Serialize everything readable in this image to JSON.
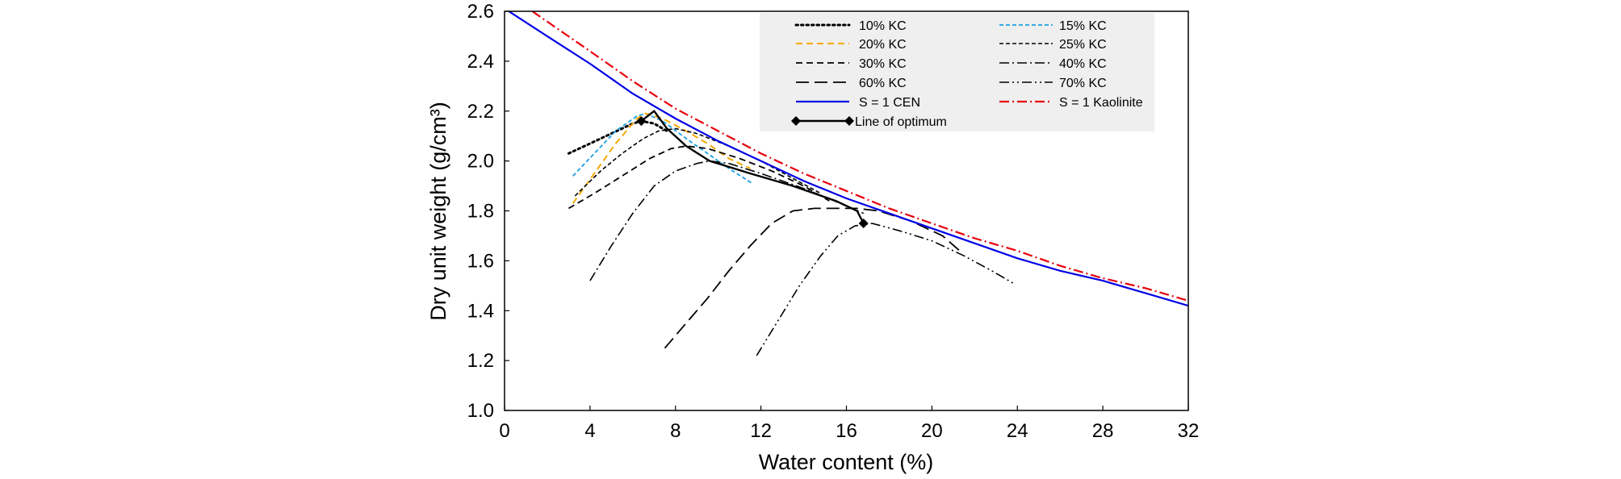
{
  "chart_data": {
    "type": "line",
    "xlabel": "Water content (%)",
    "ylabel": "Dry unit weight (g/cm³)",
    "xlim": [
      0,
      32
    ],
    "ylim": [
      1.0,
      2.6
    ],
    "x_ticks": [
      0,
      4,
      8,
      12,
      16,
      20,
      24,
      28,
      32
    ],
    "y_ticks": [
      1.0,
      1.2,
      1.4,
      1.6,
      1.8,
      2.0,
      2.2,
      2.4,
      2.6
    ],
    "x_tick_labels": [
      "0",
      "4",
      "8",
      "12",
      "16",
      "20",
      "24",
      "28",
      "32"
    ],
    "y_tick_labels": [
      "1.0",
      "1.2",
      "1.4",
      "1.6",
      "1.8",
      "2.0",
      "2.2",
      "2.4",
      "2.6"
    ],
    "grid": false,
    "legend_position": "top-right",
    "series": [
      {
        "name": "10% KC",
        "color": "#000000",
        "dash": "dot",
        "width": 3,
        "points": [
          [
            3.0,
            2.03
          ],
          [
            4.0,
            2.07
          ],
          [
            5.0,
            2.11
          ],
          [
            6.0,
            2.15
          ],
          [
            6.4,
            2.16
          ],
          [
            7.0,
            2.15
          ],
          [
            7.6,
            2.12
          ]
        ]
      },
      {
        "name": "15% KC",
        "color": "#1ba1e2",
        "dash": "short-dash",
        "width": 1.8,
        "points": [
          [
            3.2,
            1.94
          ],
          [
            4.2,
            2.03
          ],
          [
            5.2,
            2.12
          ],
          [
            6.2,
            2.18
          ],
          [
            6.6,
            2.19
          ],
          [
            7.4,
            2.16
          ],
          [
            8.5,
            2.09
          ],
          [
            9.5,
            2.03
          ],
          [
            10.5,
            1.97
          ],
          [
            11.6,
            1.91
          ]
        ]
      },
      {
        "name": "20% KC",
        "color": "#f5a800",
        "dash": "dash",
        "width": 2,
        "points": [
          [
            3.2,
            1.83
          ],
          [
            4.2,
            1.95
          ],
          [
            5.2,
            2.07
          ],
          [
            6.2,
            2.17
          ],
          [
            6.6,
            2.19
          ],
          [
            7.4,
            2.17
          ],
          [
            8.5,
            2.12
          ],
          [
            9.5,
            2.07
          ],
          [
            10.5,
            2.01
          ],
          [
            11.5,
            1.97
          ]
        ]
      },
      {
        "name": "25% KC",
        "color": "#000000",
        "dash": "dash-fine",
        "width": 1.6,
        "points": [
          [
            3.3,
            1.86
          ],
          [
            4.5,
            1.96
          ],
          [
            5.5,
            2.03
          ],
          [
            6.5,
            2.09
          ],
          [
            7.2,
            2.12
          ],
          [
            8.0,
            2.13
          ],
          [
            9.0,
            2.11
          ],
          [
            10.5,
            2.06
          ],
          [
            12.0,
            2.0
          ],
          [
            13.5,
            1.93
          ],
          [
            14.8,
            1.87
          ]
        ]
      },
      {
        "name": "30% KC",
        "color": "#000000",
        "dash": "dash",
        "width": 1.8,
        "points": [
          [
            3.0,
            1.81
          ],
          [
            4.2,
            1.87
          ],
          [
            5.5,
            1.94
          ],
          [
            6.8,
            2.01
          ],
          [
            7.8,
            2.05
          ],
          [
            8.5,
            2.06
          ],
          [
            9.5,
            2.05
          ],
          [
            11.0,
            2.01
          ],
          [
            12.5,
            1.96
          ],
          [
            14.0,
            1.9
          ],
          [
            15.2,
            1.84
          ]
        ]
      },
      {
        "name": "40% KC",
        "color": "#000000",
        "dash": "dash-dot",
        "width": 1.6,
        "points": [
          [
            4.0,
            1.52
          ],
          [
            5.0,
            1.66
          ],
          [
            6.0,
            1.79
          ],
          [
            7.0,
            1.9
          ],
          [
            8.0,
            1.96
          ],
          [
            9.0,
            1.99
          ],
          [
            9.6,
            2.0
          ],
          [
            10.5,
            1.99
          ],
          [
            12.0,
            1.95
          ],
          [
            14.0,
            1.89
          ],
          [
            16.0,
            1.82
          ],
          [
            16.8,
            1.79
          ]
        ]
      },
      {
        "name": "60% KC",
        "color": "#000000",
        "dash": "long-dash",
        "width": 1.8,
        "points": [
          [
            7.5,
            1.25
          ],
          [
            8.5,
            1.35
          ],
          [
            9.5,
            1.45
          ],
          [
            10.5,
            1.56
          ],
          [
            11.5,
            1.66
          ],
          [
            12.5,
            1.75
          ],
          [
            13.5,
            1.8
          ],
          [
            14.5,
            1.81
          ],
          [
            15.5,
            1.81
          ],
          [
            16.5,
            1.81
          ],
          [
            17.5,
            1.8
          ],
          [
            19.0,
            1.76
          ],
          [
            20.5,
            1.7
          ],
          [
            21.3,
            1.64
          ]
        ]
      },
      {
        "name": "70% KC",
        "color": "#000000",
        "dash": "dash-dot-dot",
        "width": 1.6,
        "points": [
          [
            11.8,
            1.22
          ],
          [
            12.8,
            1.36
          ],
          [
            13.8,
            1.5
          ],
          [
            14.8,
            1.62
          ],
          [
            15.6,
            1.7
          ],
          [
            16.4,
            1.74
          ],
          [
            17.2,
            1.75
          ],
          [
            18.5,
            1.72
          ],
          [
            20.0,
            1.68
          ],
          [
            21.5,
            1.62
          ],
          [
            22.8,
            1.56
          ],
          [
            23.8,
            1.51
          ]
        ]
      },
      {
        "name": "S = 1 CEN",
        "color": "#0000e6",
        "dash": "solid",
        "width": 2.2,
        "points": [
          [
            0.2,
            2.6
          ],
          [
            2,
            2.5
          ],
          [
            4,
            2.39
          ],
          [
            6,
            2.27
          ],
          [
            8,
            2.17
          ],
          [
            10,
            2.08
          ],
          [
            12,
            2.0
          ],
          [
            14,
            1.92
          ],
          [
            16,
            1.85
          ],
          [
            18,
            1.79
          ],
          [
            20,
            1.73
          ],
          [
            22,
            1.67
          ],
          [
            24,
            1.61
          ],
          [
            26,
            1.56
          ],
          [
            28,
            1.52
          ],
          [
            30,
            1.47
          ],
          [
            32,
            1.42
          ]
        ]
      },
      {
        "name": "S = 1 Kaolinite",
        "color": "#e8000b",
        "dash": "dash-dot",
        "width": 2.2,
        "points": [
          [
            1.3,
            2.6
          ],
          [
            4,
            2.44
          ],
          [
            6,
            2.32
          ],
          [
            8,
            2.21
          ],
          [
            10,
            2.12
          ],
          [
            12,
            2.03
          ],
          [
            14,
            1.95
          ],
          [
            16,
            1.88
          ],
          [
            18,
            1.81
          ],
          [
            20,
            1.75
          ],
          [
            22,
            1.69
          ],
          [
            24,
            1.64
          ],
          [
            26,
            1.58
          ],
          [
            28,
            1.53
          ],
          [
            30,
            1.49
          ],
          [
            32,
            1.44
          ]
        ]
      },
      {
        "name": "Line of optimum",
        "color": "#000000",
        "dash": "solid",
        "width": 2.4,
        "markers": "diamond-ends",
        "points": [
          [
            6.4,
            2.16
          ],
          [
            7.0,
            2.2
          ],
          [
            7.6,
            2.13
          ],
          [
            8.5,
            2.06
          ],
          [
            9.6,
            2.0
          ],
          [
            11.5,
            1.95
          ],
          [
            13.5,
            1.9
          ],
          [
            15.5,
            1.84
          ],
          [
            16.5,
            1.8
          ],
          [
            16.8,
            1.75
          ]
        ]
      }
    ]
  }
}
